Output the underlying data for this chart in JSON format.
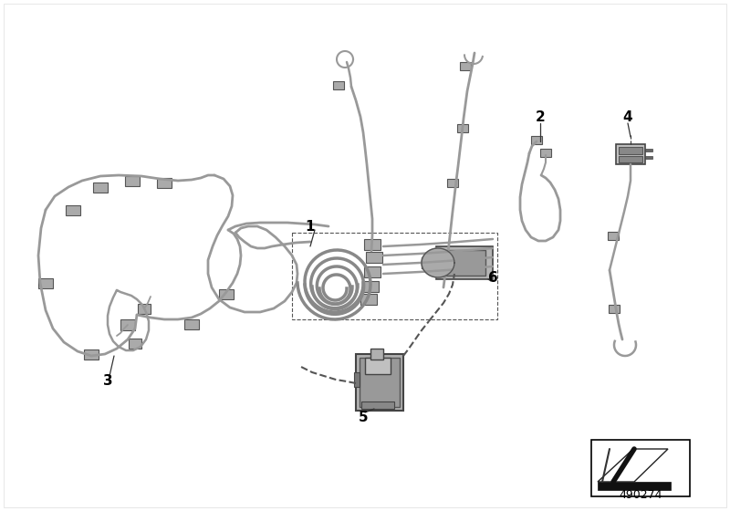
{
  "bg_color": "#ffffff",
  "part_number": "490274",
  "wire_color": "#999999",
  "wire_lw": 1.8,
  "connector_color": "#aaaaaa",
  "connector_edge": "#555555",
  "label_color": "#000000",
  "part_colors": {
    "motor_face": "#b0b0b0",
    "motor_body": "#888888",
    "connector_face": "#aaaaaa"
  }
}
